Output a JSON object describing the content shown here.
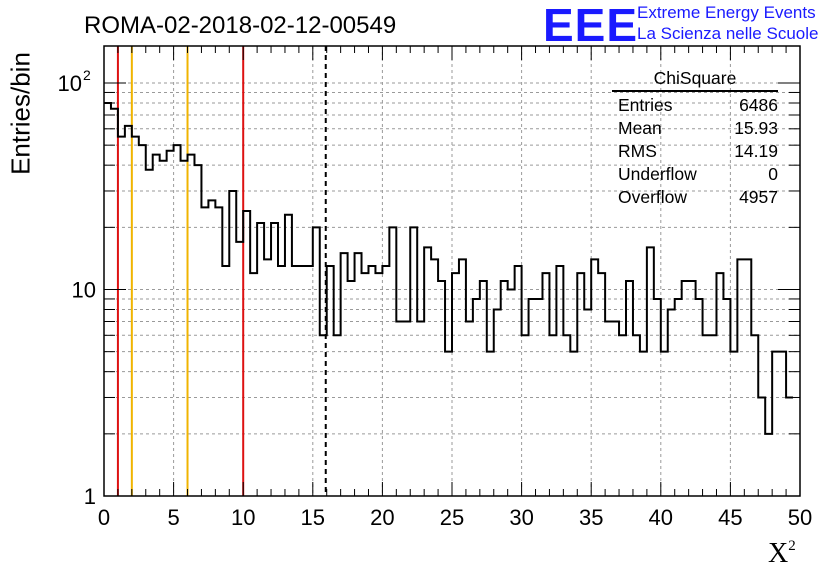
{
  "header": {
    "title": "ROMA-02-2018-02-12-00549",
    "logo": "EEE",
    "logo_line1": "Extreme Energy Events",
    "logo_line2": "La Scienza nelle Scuole"
  },
  "stats": {
    "name": "ChiSquare",
    "rows": [
      {
        "label": "Entries",
        "value": "6486"
      },
      {
        "label": "Mean",
        "value": "15.93"
      },
      {
        "label": "RMS",
        "value": "14.19"
      },
      {
        "label": "Underflow",
        "value": "0"
      },
      {
        "label": "Overflow",
        "value": "4957"
      }
    ]
  },
  "colors": {
    "red_line": "#dd1111",
    "yellow_line": "#f0b400",
    "histogram": "#000000",
    "logo": "#1a1aff",
    "grid": "#9a9a9a"
  },
  "chart_data": {
    "type": "histogram",
    "title": "ROMA-02-2018-02-12-00549",
    "xlabel": "X",
    "xlabel_superscript": "2",
    "ylabel": "Entries/bin",
    "xlim": [
      0,
      50
    ],
    "ylim": [
      1,
      150
    ],
    "yscale": "log",
    "grid": true,
    "bin_width": 0.5,
    "x_ticks": [
      "0",
      "5",
      "10",
      "15",
      "20",
      "25",
      "30",
      "35",
      "40",
      "45",
      "50"
    ],
    "y_ticks": [
      "1",
      "10",
      "10^2"
    ],
    "values": [
      80,
      75,
      55,
      62,
      55,
      50,
      38,
      45,
      42,
      47,
      50,
      42,
      45,
      40,
      25,
      27,
      25,
      13,
      30,
      17,
      24,
      12,
      21,
      14,
      21,
      13,
      23,
      13,
      13,
      13,
      20,
      6,
      13,
      6,
      15,
      11,
      15,
      12,
      13,
      12,
      13,
      20,
      7,
      7,
      20,
      7,
      16,
      14,
      11,
      5,
      12,
      14,
      7,
      9,
      11,
      5,
      8,
      11,
      10,
      13,
      6,
      9,
      9,
      12,
      6,
      13,
      6,
      5,
      12,
      8,
      14,
      12,
      7,
      7,
      6,
      11,
      6,
      5,
      16,
      9,
      5,
      8,
      9,
      11,
      11,
      9,
      6,
      6,
      12,
      9,
      5,
      14,
      14,
      6,
      3,
      2,
      5,
      5,
      3
    ],
    "vertical_lines": [
      {
        "x": 1,
        "color": "red",
        "style": "solid"
      },
      {
        "x": 2,
        "color": "yellow",
        "style": "solid"
      },
      {
        "x": 6,
        "color": "yellow",
        "style": "solid"
      },
      {
        "x": 10,
        "color": "red",
        "style": "solid"
      },
      {
        "x": 15.93,
        "color": "black",
        "style": "dashed"
      }
    ]
  }
}
